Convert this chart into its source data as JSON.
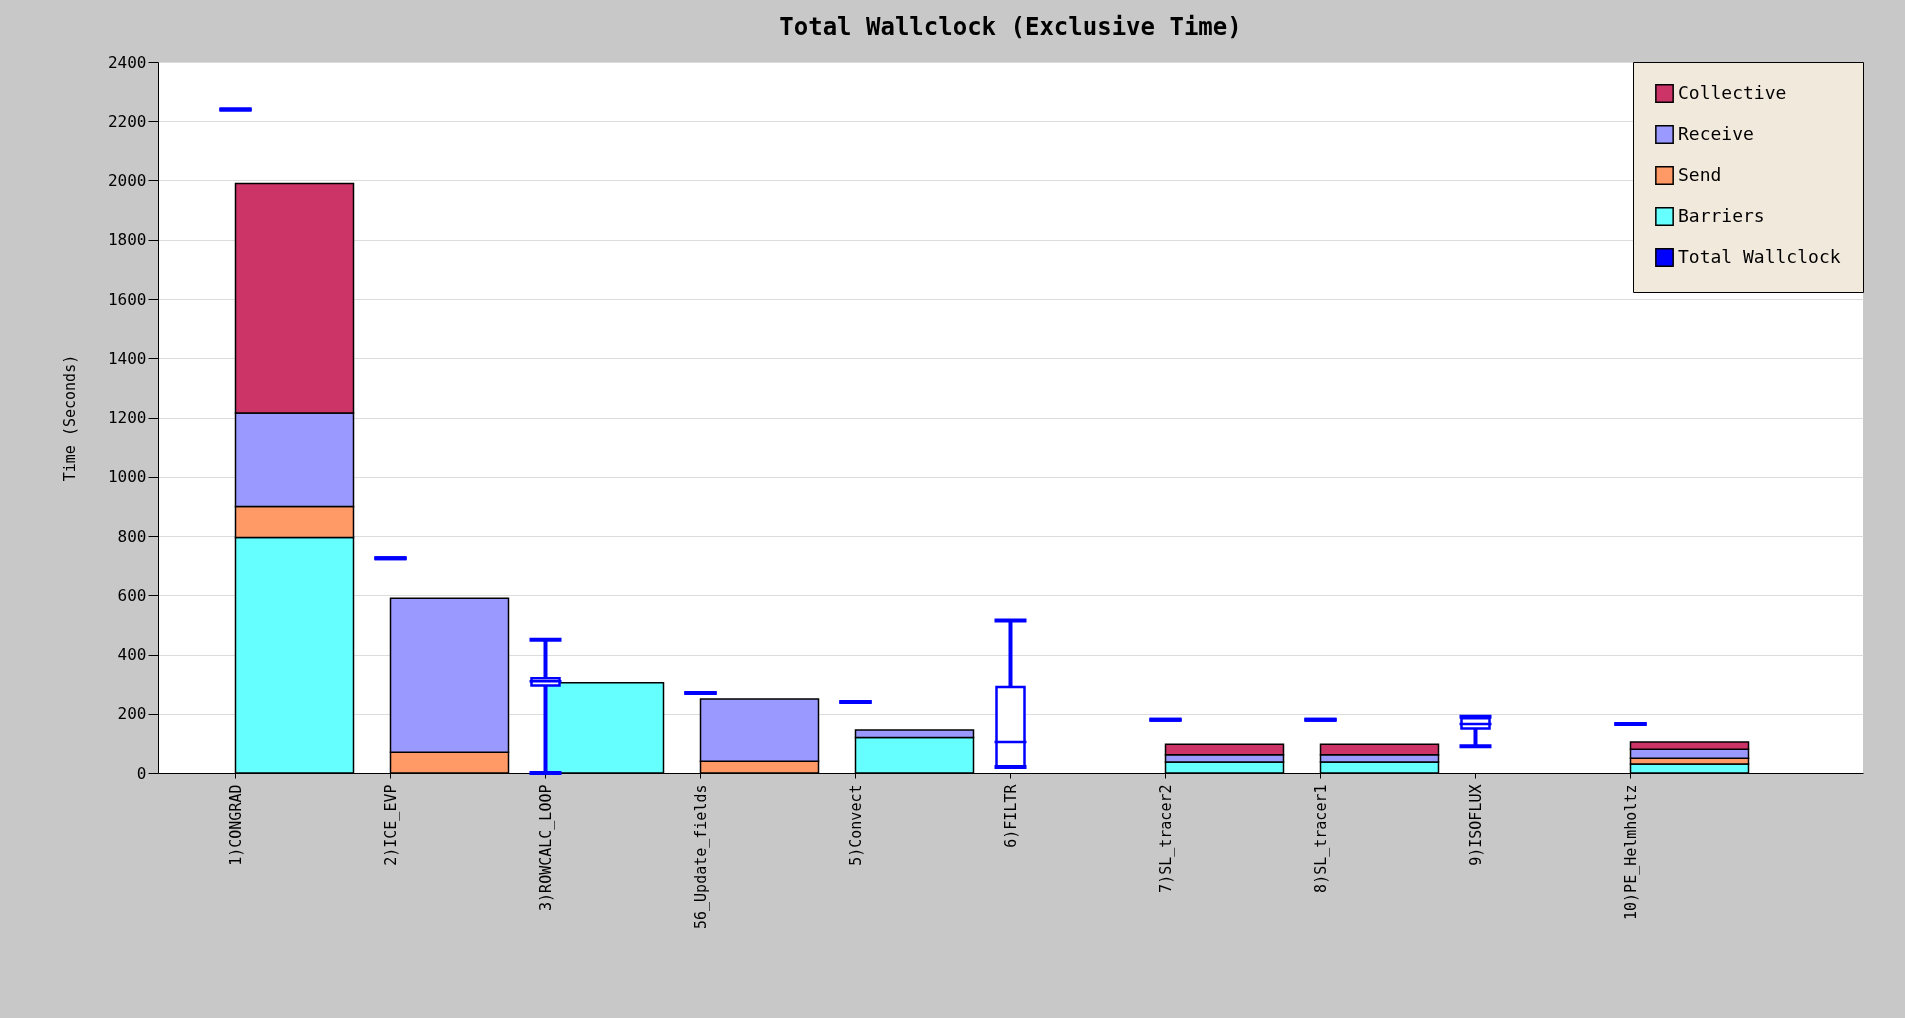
{
  "chart_data": {
    "type": "bar",
    "title": "Total Wallclock (Exclusive Time)",
    "ylabel": "Time (Seconds)",
    "stacked": true,
    "grid": "y",
    "legend": "top right",
    "categories": [
      "1)CONGRAD",
      "2)ICE_EVP",
      "3)ROWCALC_LOOP",
      "56_Update_fields",
      "5)Convect",
      "6)FILTR",
      "7)SL_tracer2",
      "8)SL_tracer1",
      "9)ISOFLUX",
      "10)PE_Helmholtz"
    ],
    "ylim": [
      0,
      2400
    ],
    "yticks": [
      0,
      200,
      400,
      600,
      800,
      1000,
      1200,
      1400,
      1600,
      1800,
      2000,
      2200,
      2400
    ],
    "series": [
      {
        "name": "Barriers",
        "color": "#66ffff",
        "values": [
          795,
          0,
          305,
          0,
          120,
          0,
          37,
          37,
          0,
          30
        ]
      },
      {
        "name": "Send",
        "color": "#ff9966",
        "values": [
          105,
          70,
          0,
          40,
          0,
          0,
          0,
          0,
          0,
          20
        ]
      },
      {
        "name": "Receive",
        "color": "#9999ff",
        "values": [
          315,
          520,
          0,
          210,
          25,
          0,
          25,
          25,
          0,
          30
        ]
      },
      {
        "name": "Collective",
        "color": "#cc3366",
        "values": [
          775,
          0,
          0,
          0,
          0,
          0,
          35,
          35,
          0,
          25
        ]
      },
      {
        "name": "Total Wallclock",
        "type": "box",
        "color": "#0000ff",
        "boxes": [
          {
            "low": 2240,
            "q1": 2240,
            "median": 2240,
            "q3": 2240,
            "high": 2240
          },
          {
            "low": 725,
            "q1": 725,
            "median": 725,
            "q3": 725,
            "high": 725
          },
          {
            "low": 0,
            "q1": 295,
            "median": 310,
            "q3": 320,
            "high": 450
          },
          {
            "low": 270,
            "q1": 270,
            "median": 270,
            "q3": 270,
            "high": 270
          },
          {
            "low": 240,
            "q1": 240,
            "median": 240,
            "q3": 240,
            "high": 240
          },
          {
            "low": 20,
            "q1": 20,
            "median": 105,
            "q3": 290,
            "high": 515
          },
          {
            "low": 180,
            "q1": 180,
            "median": 180,
            "q3": 180,
            "high": 180
          },
          {
            "low": 180,
            "q1": 180,
            "median": 180,
            "q3": 180,
            "high": 180
          },
          {
            "low": 90,
            "q1": 150,
            "median": 165,
            "q3": 185,
            "high": 190
          },
          {
            "low": 165,
            "q1": 165,
            "median": 165,
            "q3": 165,
            "high": 165
          }
        ]
      }
    ]
  }
}
